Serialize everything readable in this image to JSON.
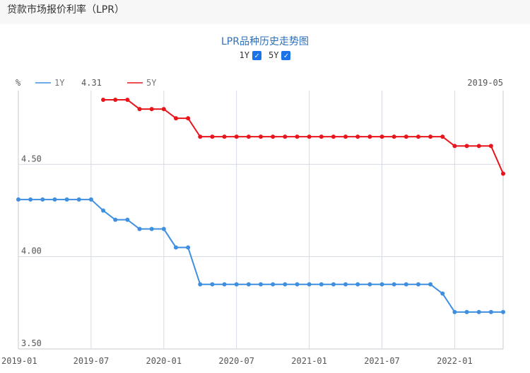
{
  "page": {
    "title": "贷款市场报价利率（LPR）"
  },
  "controls": {
    "toggles": [
      {
        "label": "1Y",
        "checked": true,
        "check_icon": "checkmark-icon"
      },
      {
        "label": "5Y",
        "checked": true,
        "check_icon": "checkmark-icon"
      }
    ]
  },
  "colors": {
    "series_1y": "#3f8fe0",
    "series_5y": "#e8151b",
    "grid": "#d6dbe4",
    "title": "#2e6fb8"
  },
  "chart_data": {
    "type": "line",
    "title": "LPR品种历史走势图",
    "ylabel": "%",
    "ylim": [
      3.5,
      4.9
    ],
    "grid": true,
    "legend_position": "top-left",
    "yticks": [
      "3.50",
      "4.00",
      "4.50"
    ],
    "xticks": [
      "2019-01",
      "2019-07",
      "2020-01",
      "2020-07",
      "2021-01",
      "2021-07",
      "2022-01"
    ],
    "cursor_value": "4.31",
    "cursor_label": "2019-05",
    "x": [
      "2019-01",
      "2019-02",
      "2019-03",
      "2019-04",
      "2019-05",
      "2019-06",
      "2019-07",
      "2019-08",
      "2019-09",
      "2019-10",
      "2019-11",
      "2019-12",
      "2020-01",
      "2020-02",
      "2020-03",
      "2020-04",
      "2020-05",
      "2020-06",
      "2020-07",
      "2020-08",
      "2020-09",
      "2020-10",
      "2020-11",
      "2020-12",
      "2021-01",
      "2021-02",
      "2021-03",
      "2021-04",
      "2021-05",
      "2021-06",
      "2021-07",
      "2021-08",
      "2021-09",
      "2021-10",
      "2021-11",
      "2021-12",
      "2022-01",
      "2022-02",
      "2022-03",
      "2022-04",
      "2022-05"
    ],
    "series": [
      {
        "name": "1Y",
        "values": [
          4.31,
          4.31,
          4.31,
          4.31,
          4.31,
          4.31,
          4.31,
          4.25,
          4.2,
          4.2,
          4.15,
          4.15,
          4.15,
          4.05,
          4.05,
          3.85,
          3.85,
          3.85,
          3.85,
          3.85,
          3.85,
          3.85,
          3.85,
          3.85,
          3.85,
          3.85,
          3.85,
          3.85,
          3.85,
          3.85,
          3.85,
          3.85,
          3.85,
          3.85,
          3.85,
          3.8,
          3.7,
          3.7,
          3.7,
          3.7,
          3.7
        ]
      },
      {
        "name": "5Y",
        "values": [
          null,
          null,
          null,
          null,
          null,
          null,
          null,
          4.85,
          4.85,
          4.85,
          4.8,
          4.8,
          4.8,
          4.75,
          4.75,
          4.65,
          4.65,
          4.65,
          4.65,
          4.65,
          4.65,
          4.65,
          4.65,
          4.65,
          4.65,
          4.65,
          4.65,
          4.65,
          4.65,
          4.65,
          4.65,
          4.65,
          4.65,
          4.65,
          4.65,
          4.65,
          4.6,
          4.6,
          4.6,
          4.6,
          4.45
        ]
      }
    ]
  }
}
